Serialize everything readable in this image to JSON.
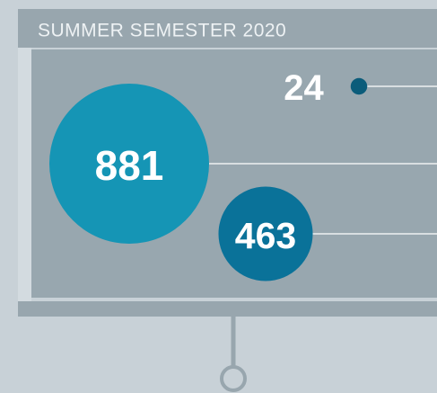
{
  "chart_data": {
    "type": "bubble",
    "title": "SUMMER SEMESTER 2020",
    "values": [
      881,
      463,
      24
    ],
    "colors": [
      "#1595b5",
      "#0a7299",
      "#0b5c7a"
    ]
  }
}
